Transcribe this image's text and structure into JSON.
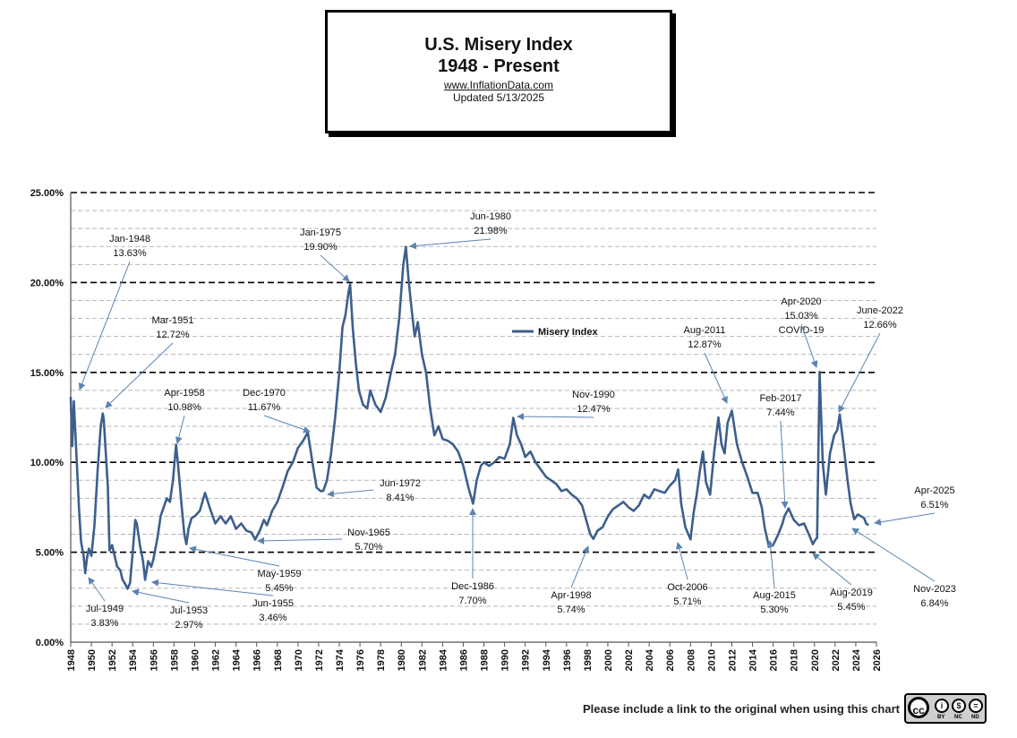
{
  "header": {
    "title_line1": "U.S. Misery Index",
    "title_line2": "1948 - Present",
    "website": "www.InflationData.com",
    "updated": "Updated  5/13/2025"
  },
  "footer": {
    "note": "Please include a link to the original when using this chart",
    "license_icon": "creative-commons-by-nc-nd-icon",
    "license_text": "cc",
    "license_parts": [
      "BY",
      "NC",
      "ND"
    ]
  },
  "chart_data": {
    "type": "line",
    "title": "U.S. Misery Index 1948 - Present",
    "xlabel": "",
    "ylabel": "",
    "xlim": [
      1948,
      2026
    ],
    "ylim": [
      0,
      25
    ],
    "x_ticks": [
      "1948",
      "1950",
      "1952",
      "1954",
      "1956",
      "1958",
      "1960",
      "1962",
      "1964",
      "1966",
      "1968",
      "1970",
      "1972",
      "1974",
      "1976",
      "1978",
      "1980",
      "1982",
      "1984",
      "1986",
      "1988",
      "1990",
      "1992",
      "1994",
      "1996",
      "1998",
      "2000",
      "2002",
      "2004",
      "2006",
      "2008",
      "2010",
      "2012",
      "2014",
      "2016",
      "2018",
      "2020",
      "2022",
      "2024",
      "2026"
    ],
    "y_ticks": [
      "0.00%",
      "5.00%",
      "10.00%",
      "15.00%",
      "20.00%",
      "25.00%"
    ],
    "grid": "major dashed black lines every 5%, minor dashed gray lines every 1%",
    "legend": {
      "label": "Misery Index",
      "placement": "center",
      "color": "#3d5f8c"
    },
    "series": [
      {
        "name": "Misery Index",
        "color": "#3d5f8c",
        "x": [
          1948.0,
          1948.15,
          1948.3,
          1948.55,
          1948.8,
          1949.0,
          1949.25,
          1949.4,
          1949.55,
          1949.75,
          1950.0,
          1950.3,
          1950.6,
          1950.9,
          1951.1,
          1951.2,
          1951.45,
          1951.6,
          1951.75,
          1952.0,
          1952.25,
          1952.5,
          1952.8,
          1953.0,
          1953.3,
          1953.5,
          1953.75,
          1954.0,
          1954.25,
          1954.4,
          1954.7,
          1955.0,
          1955.2,
          1955.5,
          1955.8,
          1956.0,
          1956.4,
          1956.7,
          1957.0,
          1957.3,
          1957.6,
          1957.9,
          1958.2,
          1958.4,
          1958.7,
          1959.0,
          1959.2,
          1959.4,
          1959.7,
          1960.0,
          1960.5,
          1961.0,
          1961.5,
          1962.0,
          1962.5,
          1963.0,
          1963.5,
          1964.0,
          1964.5,
          1965.0,
          1965.5,
          1965.85,
          1966.3,
          1966.7,
          1967.0,
          1967.5,
          1968.0,
          1968.5,
          1969.0,
          1969.5,
          1970.0,
          1970.5,
          1970.95,
          1971.4,
          1971.8,
          1972.2,
          1972.45,
          1972.8,
          1973.2,
          1973.6,
          1974.0,
          1974.3,
          1974.6,
          1974.9,
          1975.05,
          1975.3,
          1975.6,
          1975.9,
          1976.3,
          1976.7,
          1977.0,
          1977.5,
          1978.0,
          1978.5,
          1979.0,
          1979.4,
          1979.8,
          1980.2,
          1980.45,
          1980.7,
          1981.0,
          1981.3,
          1981.6,
          1982.0,
          1982.4,
          1982.8,
          1983.2,
          1983.6,
          1984.0,
          1984.5,
          1985.0,
          1985.5,
          1986.0,
          1986.5,
          1986.95,
          1987.3,
          1987.7,
          1988.0,
          1988.5,
          1989.0,
          1989.5,
          1990.0,
          1990.5,
          1990.85,
          1991.2,
          1991.6,
          1992.0,
          1992.5,
          1993.0,
          1993.5,
          1994.0,
          1994.5,
          1995.0,
          1995.5,
          1996.0,
          1996.5,
          1997.0,
          1997.5,
          1998.0,
          1998.3,
          1998.6,
          1999.0,
          1999.5,
          2000.0,
          2000.5,
          2001.0,
          2001.5,
          2002.0,
          2002.5,
          2003.0,
          2003.5,
          2004.0,
          2004.5,
          2005.0,
          2005.5,
          2006.0,
          2006.5,
          2006.8,
          2007.1,
          2007.5,
          2008.0,
          2008.3,
          2008.6,
          2008.9,
          2009.2,
          2009.5,
          2009.9,
          2010.3,
          2010.7,
          2011.0,
          2011.3,
          2011.6,
          2012.0,
          2012.5,
          2013.0,
          2013.5,
          2014.0,
          2014.5,
          2014.9,
          2015.2,
          2015.6,
          2016.0,
          2016.5,
          2016.9,
          2017.1,
          2017.5,
          2018.0,
          2018.5,
          2019.0,
          2019.3,
          2019.6,
          2019.85,
          2020.1,
          2020.25,
          2020.5,
          2020.8,
          2021.1,
          2021.5,
          2021.9,
          2022.2,
          2022.45,
          2022.8,
          2023.2,
          2023.5,
          2023.85,
          2024.2,
          2024.5,
          2024.8,
          2025.0,
          2025.25
        ],
        "values": [
          13.63,
          10.9,
          13.4,
          10.5,
          7.5,
          5.6,
          4.8,
          3.83,
          4.6,
          5.2,
          4.8,
          6.5,
          9.5,
          12.0,
          12.72,
          12.4,
          10.0,
          8.6,
          5.1,
          5.4,
          4.8,
          4.2,
          4.0,
          3.5,
          3.2,
          2.97,
          3.3,
          5.0,
          6.8,
          6.6,
          5.4,
          4.5,
          3.46,
          4.5,
          4.2,
          4.6,
          5.8,
          7.0,
          7.5,
          8.0,
          7.8,
          9.0,
          10.98,
          9.8,
          7.8,
          6.0,
          5.45,
          6.3,
          6.9,
          7.0,
          7.3,
          8.3,
          7.4,
          6.6,
          7.0,
          6.6,
          7.0,
          6.3,
          6.6,
          6.2,
          6.1,
          5.7,
          6.2,
          6.8,
          6.5,
          7.3,
          7.8,
          8.6,
          9.5,
          10.0,
          10.8,
          11.2,
          11.67,
          10.0,
          8.6,
          8.4,
          8.41,
          9.0,
          10.5,
          12.5,
          15.0,
          17.5,
          18.2,
          19.5,
          19.9,
          17.5,
          15.5,
          14.0,
          13.2,
          13.0,
          14.0,
          13.2,
          12.8,
          13.6,
          15.0,
          16.0,
          18.0,
          21.0,
          21.98,
          20.2,
          18.5,
          17.0,
          17.8,
          16.0,
          15.0,
          13.0,
          11.5,
          12.0,
          11.3,
          11.2,
          11.0,
          10.6,
          9.8,
          8.6,
          7.7,
          9.0,
          9.8,
          10.0,
          9.8,
          10.0,
          10.3,
          10.2,
          11.0,
          12.47,
          11.5,
          11.0,
          10.3,
          10.6,
          10.0,
          9.6,
          9.2,
          9.0,
          8.8,
          8.4,
          8.5,
          8.2,
          8.0,
          7.6,
          6.6,
          6.0,
          5.74,
          6.2,
          6.4,
          7.0,
          7.4,
          7.6,
          7.8,
          7.5,
          7.3,
          7.6,
          8.2,
          8.0,
          8.5,
          8.4,
          8.3,
          8.7,
          9.0,
          9.6,
          7.7,
          6.4,
          5.71,
          7.2,
          8.2,
          9.5,
          10.6,
          8.9,
          8.2,
          10.6,
          12.5,
          11.0,
          10.5,
          12.2,
          12.87,
          11.0,
          10.0,
          9.2,
          8.3,
          8.3,
          7.5,
          6.3,
          5.3,
          5.4,
          6.0,
          6.6,
          7.0,
          7.44,
          6.8,
          6.5,
          6.6,
          6.2,
          5.8,
          5.45,
          5.7,
          5.8,
          15.03,
          10.0,
          8.2,
          10.5,
          11.5,
          11.8,
          12.66,
          11.0,
          9.0,
          7.7,
          6.84,
          7.1,
          7.0,
          6.9,
          6.6,
          6.51
        ]
      }
    ],
    "annotations": [
      {
        "label": "Jan-1948",
        "value": "13.63%"
      },
      {
        "label": "Jul-1949",
        "value": "3.83%"
      },
      {
        "label": "Mar-1951",
        "value": "12.72%"
      },
      {
        "label": "Jul-1953",
        "value": "2.97%"
      },
      {
        "label": "Jun-1955",
        "value": "3.46%"
      },
      {
        "label": "Apr-1958",
        "value": "10.98%"
      },
      {
        "label": "May-1959",
        "value": "5.45%"
      },
      {
        "label": "Nov-1965",
        "value": "5.70%"
      },
      {
        "label": "Dec-1970",
        "value": "11.67%"
      },
      {
        "label": "Jun-1972",
        "value": "8.41%"
      },
      {
        "label": "Jan-1975",
        "value": "19.90%"
      },
      {
        "label": "Jun-1980",
        "value": "21.98%"
      },
      {
        "label": "Dec-1986",
        "value": "7.70%"
      },
      {
        "label": "Nov-1990",
        "value": "12.47%"
      },
      {
        "label": "Apr-1998",
        "value": "5.74%"
      },
      {
        "label": "Oct-2006",
        "value": "5.71%"
      },
      {
        "label": "Aug-2011",
        "value": "12.87%"
      },
      {
        "label": "Aug-2015",
        "value": "5.30%"
      },
      {
        "label": "Feb-2017",
        "value": "7.44%"
      },
      {
        "label": "Aug-2019",
        "value": "5.45%"
      },
      {
        "label": "Apr-2020",
        "value": "15.03%",
        "note": "COVID-19"
      },
      {
        "label": "June-2022",
        "value": "12.66%"
      },
      {
        "label": "Nov-2023",
        "value": "6.84%"
      },
      {
        "label": "Apr-2025",
        "value": "6.51%"
      }
    ]
  }
}
